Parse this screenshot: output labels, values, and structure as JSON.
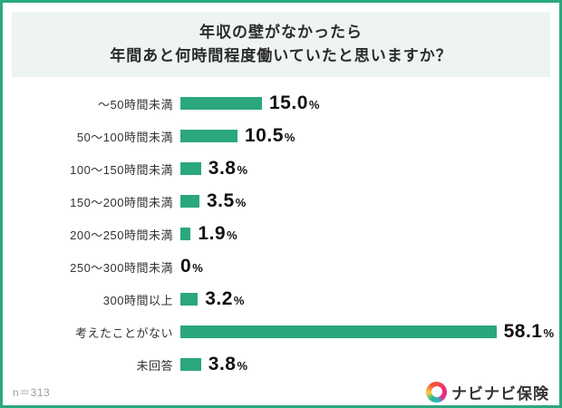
{
  "title": {
    "line1": "年収の壁がなかったら",
    "line2": "年間あと何時間程度働いていたと思いますか？"
  },
  "chart_data": {
    "type": "bar",
    "orientation": "horizontal",
    "categories": [
      "～50時間未満",
      "50～100時間未満",
      "100～150時間未満",
      "150～200時間未満",
      "200～250時間未満",
      "250～300時間未満",
      "300時間以上",
      "考えたことがない",
      "未回答"
    ],
    "values": [
      15.0,
      10.5,
      3.8,
      3.5,
      1.9,
      0,
      3.2,
      58.1,
      3.8
    ],
    "value_labels": [
      "15.0",
      "10.5",
      "3.8",
      "3.5",
      "1.9",
      "0",
      "3.2",
      "58.1",
      "3.8"
    ],
    "unit": "%",
    "title": "年収の壁がなかったら 年間あと何時間程度働いていたと思いますか？",
    "xlabel": "",
    "ylabel": "",
    "xlim": [
      0,
      60
    ],
    "grid": false,
    "bar_color": "#2aa87c"
  },
  "footer": {
    "n_label": "n＝313",
    "logo_text": "ナビナビ保険",
    "logo_icon": "multicolor-ring-icon",
    "logo_colors": [
      "#ea2e7e",
      "#f4503a",
      "#f7cf3d",
      "#23b9c2"
    ]
  },
  "colors": {
    "accent_green": "#2aa87c",
    "title_background": "#edf4f1",
    "text_dark": "#2b2b2b",
    "text_gray": "#9aa0a0"
  }
}
